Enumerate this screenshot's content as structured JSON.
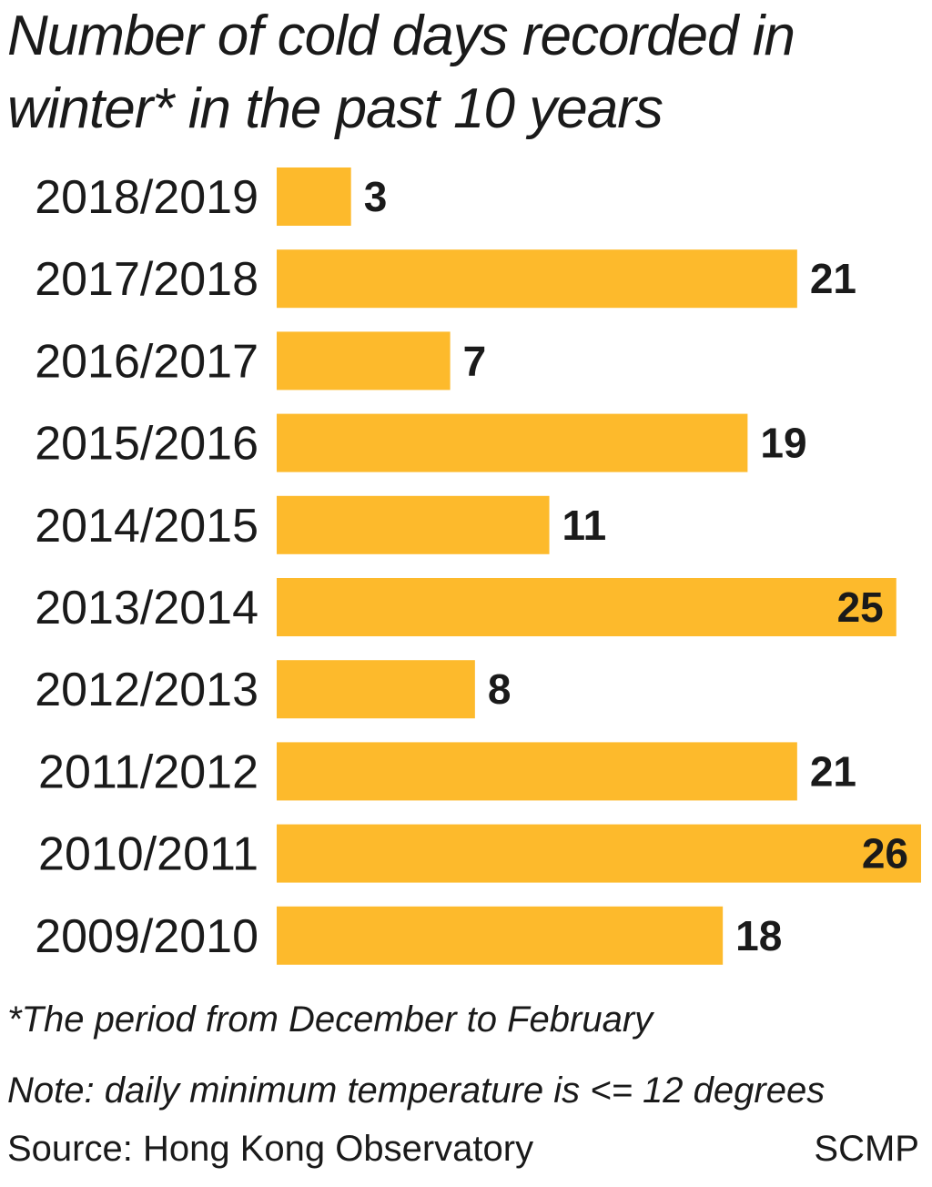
{
  "chart_data": {
    "type": "bar",
    "orientation": "horizontal",
    "title": "Number of cold days recorded in winter* in the past 10 years",
    "categories": [
      "2018/2019",
      "2017/2018",
      "2016/2017",
      "2015/2016",
      "2014/2015",
      "2013/2014",
      "2012/2013",
      "2011/2012",
      "2010/2011",
      "2009/2010"
    ],
    "values": [
      3,
      21,
      7,
      19,
      11,
      25,
      8,
      21,
      26,
      18
    ],
    "xlim": [
      0,
      26
    ],
    "grid": false,
    "bar_color": "#FDBA2C"
  },
  "footnotes": {
    "period": "*The period from December to February",
    "note": "Note: daily minimum temperature is <= 12 degrees"
  },
  "source": {
    "text": "Source: Hong Kong Observatory",
    "credit": "SCMP"
  }
}
